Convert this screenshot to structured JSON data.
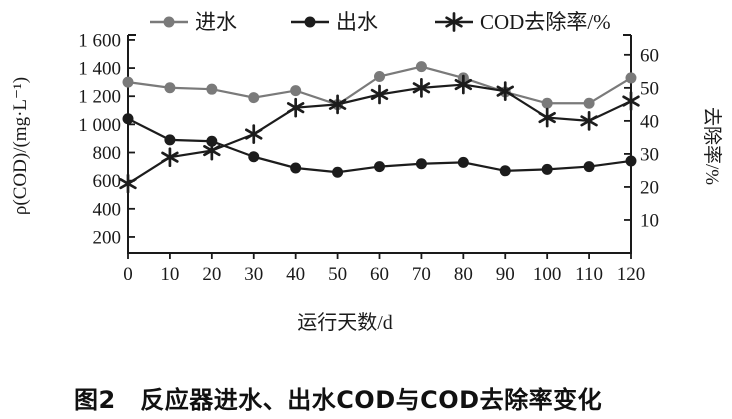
{
  "chart_data": {
    "type": "line",
    "title": "图2　反应器进水、出水COD与COD去除率变化",
    "xlabel": "运行天数/d",
    "ylabel_left": "ρ(COD)/(mg·L⁻¹)",
    "ylabel_right": "去除率/%",
    "legend_position": "top",
    "grid": false,
    "axis_color": "#1a1a1a",
    "x_axis": {
      "lim": [
        0,
        120
      ],
      "ticks": [
        0,
        10,
        20,
        30,
        40,
        50,
        60,
        70,
        80,
        90,
        100,
        110,
        120
      ]
    },
    "y_left": {
      "lim": [
        86,
        1635
      ],
      "ticks": [
        200,
        400,
        600,
        800,
        1000,
        1200,
        1400,
        1600
      ],
      "labels": [
        "200",
        "400",
        "600",
        "800",
        "1 000",
        "1 200",
        "1 400",
        "1 600"
      ]
    },
    "y_right": {
      "lim": [
        0,
        66
      ],
      "ticks": [
        10,
        20,
        30,
        40,
        50,
        60
      ],
      "labels": [
        "10",
        "20",
        "30",
        "40",
        "50",
        "60"
      ]
    },
    "x": [
      0,
      10,
      20,
      30,
      40,
      50,
      60,
      70,
      80,
      90,
      100,
      110,
      120
    ],
    "series": [
      {
        "id": "influent",
        "name": "进水",
        "axis": "left",
        "marker": "circle",
        "color": "#7a7a7a",
        "values": [
          1300,
          1260,
          1250,
          1190,
          1240,
          1140,
          1340,
          1410,
          1330,
          1230,
          1150,
          1150,
          1330
        ]
      },
      {
        "id": "effluent",
        "name": "出水",
        "axis": "left",
        "marker": "circle",
        "color": "#1c1c1c",
        "values": [
          1040,
          890,
          880,
          770,
          690,
          660,
          700,
          720,
          730,
          670,
          680,
          700,
          740
        ]
      },
      {
        "id": "cod-removal-rate",
        "name": "COD去除率/%",
        "axis": "right",
        "marker": "asterisk",
        "color": "#1c1c1c",
        "values": [
          21,
          29,
          31,
          36,
          44,
          45,
          48,
          50,
          51,
          49,
          41,
          40,
          46
        ]
      }
    ]
  }
}
